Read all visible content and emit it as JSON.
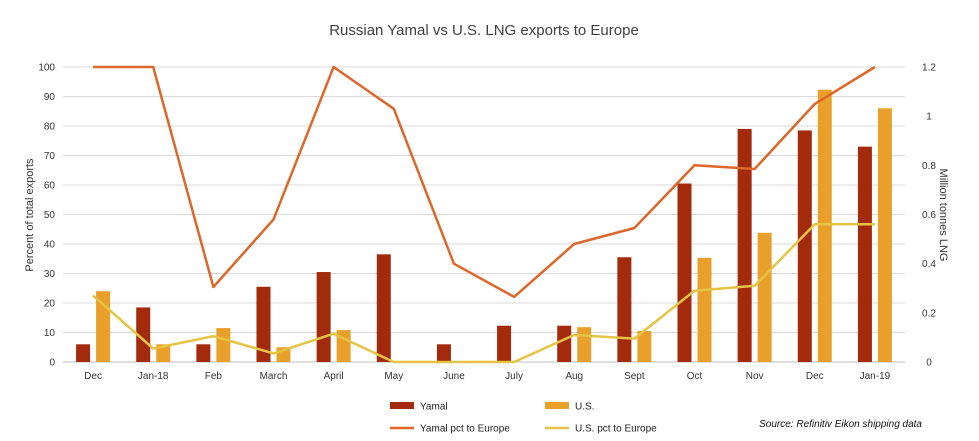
{
  "chart_data": {
    "type": "bar",
    "title": "Russian Yamal vs U.S. LNG exports to Europe",
    "source": "Source: Refinitiv Eikon shipping data",
    "categories": [
      "Dec",
      "Jan-18",
      "Feb",
      "March",
      "April",
      "May",
      "June",
      "July",
      "Aug",
      "Sept",
      "Oct",
      "Nov",
      "Dec",
      "Jan-19"
    ],
    "y_left": {
      "label": "Percent of total exports",
      "min": 0,
      "max": 100,
      "ticks": [
        "0",
        "10",
        "20",
        "30",
        "40",
        "50",
        "60",
        "70",
        "80",
        "90",
        "100"
      ]
    },
    "y_right": {
      "label": "Million tonnes LNG",
      "min": 0,
      "max": 1.2,
      "ticks": [
        "0",
        "0.2",
        "0.4",
        "0.6",
        "0.8",
        "1",
        "1.2"
      ]
    },
    "grid": true,
    "legend_position": "bottom",
    "series": [
      {
        "name": "Yamal",
        "kind": "bar",
        "axis": "left",
        "color": "#A32B0C",
        "values": [
          6,
          18.5,
          6,
          25.5,
          30.5,
          36.5,
          6,
          12.3,
          12.3,
          35.5,
          60.5,
          79,
          78.5,
          73
        ]
      },
      {
        "name": "U.S.",
        "kind": "bar",
        "axis": "left",
        "color": "#E8A02B",
        "values": [
          24,
          6,
          11.5,
          5,
          10.8,
          0,
          0,
          0,
          11.8,
          10.5,
          35.3,
          43.8,
          92.3,
          86
        ]
      },
      {
        "name": "Yamal pct to Europe",
        "kind": "line",
        "axis": "right",
        "color": "#DD6628",
        "values": [
          1.2,
          1.2,
          0.305,
          0.58,
          1.2,
          1.03,
          0.4,
          0.265,
          0.48,
          0.545,
          0.8,
          0.785,
          1.05,
          1.2
        ]
      },
      {
        "name": "U.S. pct to Europe",
        "kind": "line",
        "axis": "right",
        "color": "#E5C343",
        "values": [
          0.27,
          0.055,
          0.105,
          0.035,
          0.115,
          0,
          0,
          0,
          0.11,
          0.095,
          0.29,
          0.31,
          0.56,
          0.56
        ]
      }
    ]
  }
}
